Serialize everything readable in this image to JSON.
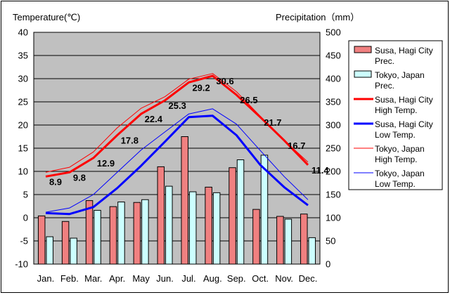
{
  "chart_data": {
    "type": "bar+line",
    "left_axis_title": "Temperature(℃)",
    "right_axis_title": "Precipitation（mm）",
    "categories": [
      "Jan.",
      "Feb.",
      "Mar.",
      "Apr.",
      "May",
      "Jun.",
      "Jul.",
      "Aug.",
      "Sep.",
      "Oct.",
      "Nov.",
      "Dec."
    ],
    "temp_ylim": [
      -10,
      40
    ],
    "temp_ticks": [
      "40",
      "35",
      "30",
      "25",
      "20",
      "15",
      "10",
      "5",
      "0",
      "-5",
      "-10"
    ],
    "temp_tick_values": [
      40,
      35,
      30,
      25,
      20,
      15,
      10,
      5,
      0,
      -5,
      -10
    ],
    "prec_ylim": [
      0,
      500
    ],
    "prec_ticks": [
      "500",
      "450",
      "400",
      "350",
      "300",
      "250",
      "200",
      "150",
      "100",
      "50",
      "0"
    ],
    "prec_tick_values": [
      500,
      450,
      400,
      350,
      300,
      250,
      200,
      150,
      100,
      50,
      0
    ],
    "grid": true,
    "legend_position": "right",
    "bar_series": [
      {
        "name": "Susa, Hagi City Prec.",
        "color": "#f08080",
        "values": [
          104,
          92,
          137,
          124,
          133,
          210,
          275,
          166,
          208,
          118,
          103,
          108
        ]
      },
      {
        "name": "Tokyo, Japan Prec.",
        "color": "#ccffff",
        "values": [
          59,
          56,
          116,
          134,
          139,
          168,
          156,
          154,
          225,
          235,
          97,
          57
        ]
      }
    ],
    "line_series": [
      {
        "name": "Susa, Hagi City High Temp.",
        "color": "#ff0000",
        "width": "thick",
        "values": [
          8.9,
          9.8,
          12.9,
          17.8,
          22.4,
          25.3,
          29.2,
          30.6,
          26.5,
          21.7,
          16.7,
          11.4
        ]
      },
      {
        "name": "Susa, Hagi City Low Temp.",
        "color": "#0000ff",
        "width": "thick",
        "values": [
          1.0,
          0.8,
          2.3,
          6.4,
          11.2,
          16.4,
          21.7,
          22.0,
          17.8,
          11.4,
          6.6,
          2.7
        ]
      },
      {
        "name": "Tokyo, Japan High Temp.",
        "color": "#ff0000",
        "width": "thin",
        "values": [
          9.8,
          10.9,
          14.2,
          19.4,
          23.6,
          26.1,
          29.9,
          31.1,
          27.2,
          21.9,
          16.7,
          12.0
        ]
      },
      {
        "name": "Tokyo, Japan Low Temp.",
        "color": "#0000ff",
        "width": "thin",
        "values": [
          1.2,
          2.1,
          5.0,
          9.8,
          14.6,
          18.5,
          22.4,
          23.5,
          20.2,
          14.5,
          8.9,
          3.9
        ]
      }
    ],
    "data_labels": {
      "series": "Susa, Hagi City High Temp.",
      "texts": [
        "8.9",
        "9.8",
        "12.9",
        "17.8",
        "22.4",
        "25.3",
        "29.2",
        "30.6",
        "26.5",
        "21.7",
        "16.7",
        "11.4"
      ],
      "values": [
        8.9,
        9.8,
        12.9,
        17.8,
        22.4,
        25.3,
        29.2,
        30.6,
        26.5,
        21.7,
        16.7,
        11.4
      ]
    },
    "legend": [
      {
        "kind": "bar",
        "line1": "Susa, Hagi City",
        "line2": "Prec.",
        "color": "#f08080"
      },
      {
        "kind": "bar",
        "line1": "Tokyo, Japan",
        "line2": "Prec.",
        "color": "#ccffff"
      },
      {
        "kind": "line",
        "weight": "thick",
        "line1": "Susa, Hagi City",
        "line2": "High Temp.",
        "color": "#ff0000"
      },
      {
        "kind": "line",
        "weight": "thick",
        "line1": "Susa, Hagi City",
        "line2": "Low Temp.",
        "color": "#0000ff"
      },
      {
        "kind": "line",
        "weight": "thin",
        "line1": "Tokyo, Japan",
        "line2": "High Temp.",
        "color": "#ff0000"
      },
      {
        "kind": "line",
        "weight": "thin",
        "line1": "Tokyo, Japan",
        "line2": "Low Temp.",
        "color": "#0000ff"
      }
    ]
  }
}
